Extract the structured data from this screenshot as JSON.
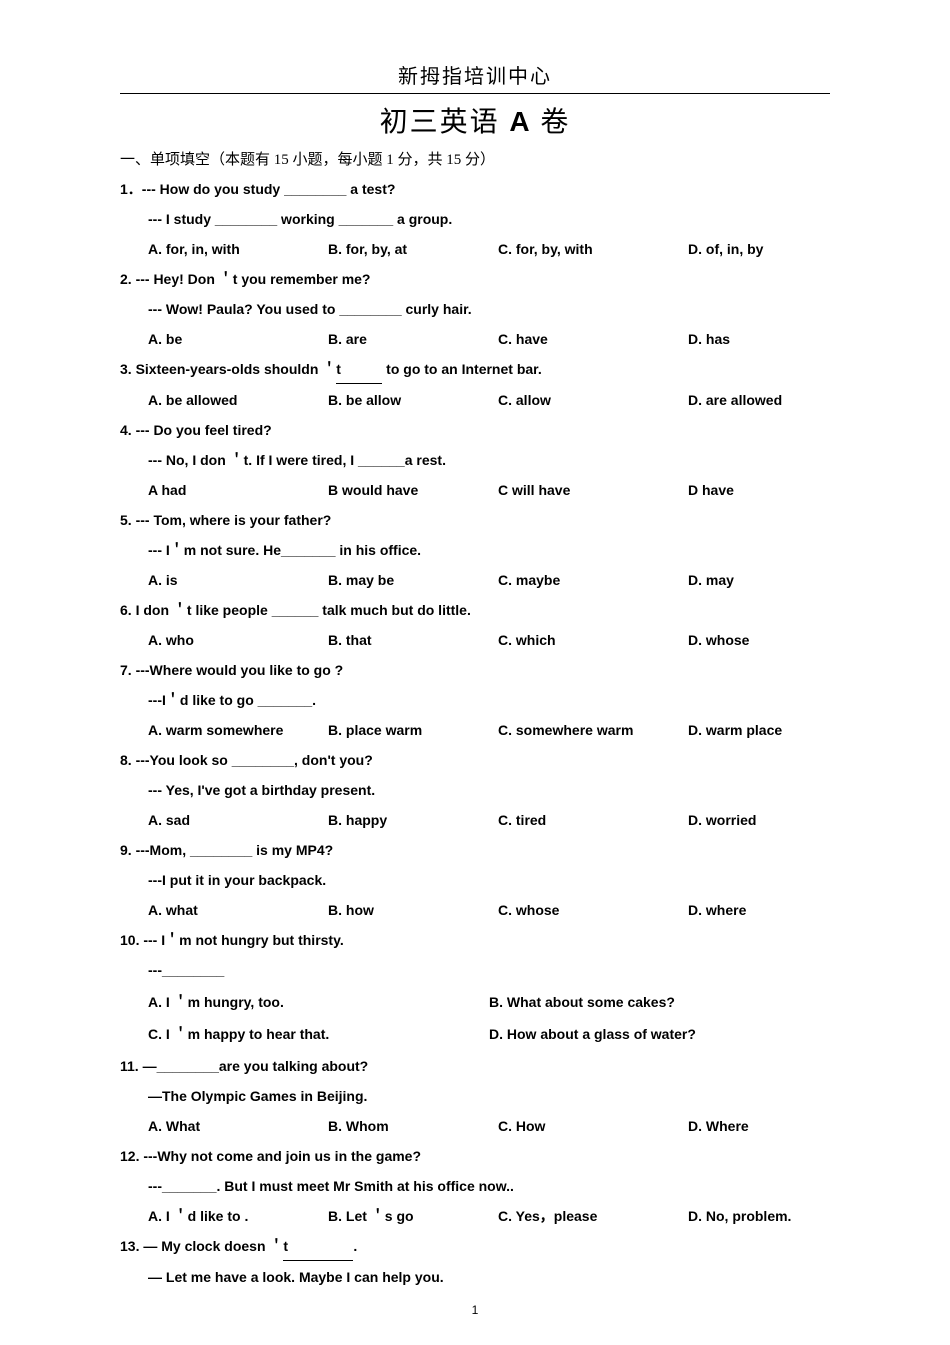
{
  "header": "新拇指培训中心",
  "title_cn": "初三英语 ",
  "title_en": "A ",
  "title_suffix": "卷",
  "section1": "一、单项填空（本题有  15 小题，每小题  1 分，共 15 分）",
  "page_number": "1",
  "q1": {
    "stem": "1．--- How do you study ________ a test?",
    "line2": "--- I study ________ working _______ a group.",
    "a": "A. for, in, with",
    "b": "B. for, by, at",
    "c": "C. for, by, with",
    "d": "D. of, in, by"
  },
  "q2": {
    "stem": "2. --- Hey! Don ＇t you remember me?",
    "line2": "--- Wow! Paula? You used to ________ curly hair.",
    "a": "A. be",
    "b": "B. are",
    "c": "C. have",
    "d": "D. has"
  },
  "q3": {
    "stem_pre": "3. Sixteen-years-olds shouldn ＇",
    "stem_t": "t",
    "stem_post": " to go to an Internet bar.",
    "a": "A. be allowed",
    "b": "B. be allow",
    "c": "C. allow",
    "d": "D. are allowed"
  },
  "q4": {
    "stem": "4. --- Do you feel tired?",
    "line2": "--- No, I don ＇t. If I were tired, I ______a rest.",
    "a": "A had",
    "b": "B would have",
    "c": "C will have",
    "d": "D have"
  },
  "q5": {
    "stem": "5. --- Tom, where is your father?",
    "line2": "--- I＇m not sure. He_______ in his office.",
    "a": "A. is",
    "b": "B. may be",
    "c": "C. maybe",
    "d": "D. may"
  },
  "q6": {
    "stem": "6. I don ＇t like people ______ talk much but do little.",
    "a": "A. who",
    "b": "B. that",
    "c": "C. which",
    "d": "D. whose"
  },
  "q7": {
    "stem": "7. ---Where would you like to go ?",
    "line2": "---I＇d like to go _______.",
    "a": "A. warm somewhere",
    "b": "B. place warm",
    "c": "C. somewhere warm",
    "d": "D. warm place"
  },
  "q8": {
    "stem": "8. ---You look so  ________, don't you?",
    "line2": "--- Yes,   I've got a birthday present.",
    "a": "A.    sad",
    "b": "B.    happy",
    "c": "C.    tired",
    "d": "D.    worried"
  },
  "q9": {
    "stem": "9. ---Mom, ________ is my MP4?",
    "line2": "---I put it in your backpack.",
    "a": "A. what",
    "b": "B. how",
    "c": "C. whose",
    "d": "D. where"
  },
  "q10": {
    "stem": "10.   --- I＇m not hungry but thirsty.",
    "line2": "---________",
    "a": "A. I ＇m hungry, too.",
    "b": "B. What about some cakes?",
    "c": "C. I ＇m happy to hear that.",
    "d": "D. How about a glass of water?"
  },
  "q11": {
    "stem": "11. —________are you talking about?",
    "line2": "—The Olympic Games in Beijing.",
    "a": "A. What",
    "b": "B. Whom",
    "c": "C. How",
    "d": "D. Where"
  },
  "q12": {
    "stem": "12. ---Why not come and join us in the game?",
    "line2": "---_______. But I must meet Mr Smith at his office now..",
    "a": "A. I ＇d like to .",
    "b": "B. Let ＇s go",
    "c": "C. Yes，please",
    "d": "D. No, problem."
  },
  "q13": {
    "stem_pre": "13. — My clock doesn  ＇",
    "stem_t": "t",
    "stem_post": ".",
    "line2": "— Let me have a look. Maybe I can help you."
  }
}
